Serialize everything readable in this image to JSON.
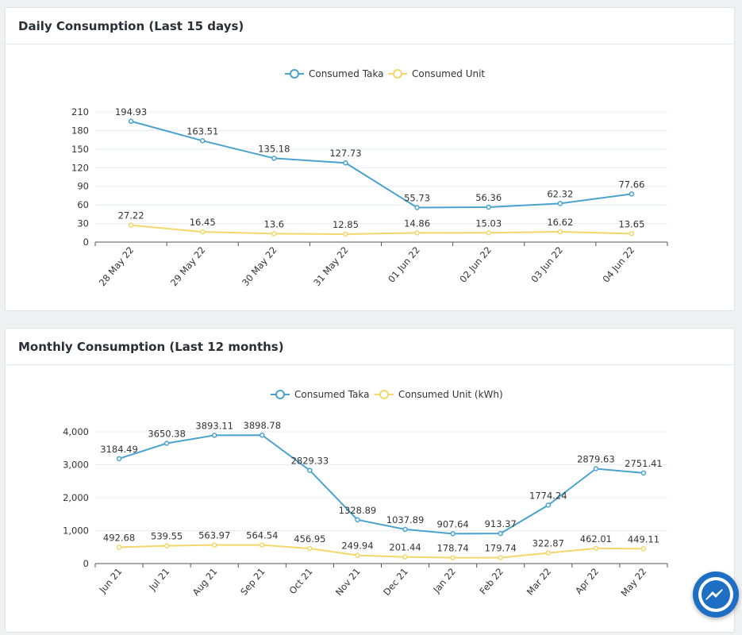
{
  "daily": {
    "title": "Daily Consumption (Last 15 days)"
  },
  "monthly": {
    "title": "Monthly Consumption (Last 12 months)"
  },
  "messenger": {
    "icon": "messenger-icon"
  },
  "colors": {
    "taka": "#4aa3cf",
    "unit": "#f3d76b",
    "grid": "#e8ecef",
    "axis": "#555555",
    "text": "#333333"
  },
  "chart_data": [
    {
      "type": "line",
      "title": "Daily Consumption (Last 15 days)",
      "categories": [
        "28 May 22",
        "29 May 22",
        "30 May 22",
        "31 May 22",
        "01 Jun 22",
        "02 Jun 22",
        "03 Jun 22",
        "04 Jun 22"
      ],
      "series": [
        {
          "name": "Consumed Taka",
          "values": [
            194.93,
            163.51,
            135.18,
            127.73,
            55.73,
            56.36,
            62.32,
            77.66
          ]
        },
        {
          "name": "Consumed Unit",
          "values": [
            27.22,
            16.45,
            13.6,
            12.85,
            14.86,
            15.03,
            16.62,
            13.65
          ]
        }
      ],
      "labels": [
        [
          "194.93",
          "163.51",
          "135.18",
          "127.73",
          "55.73",
          "56.36",
          "62.32",
          "77.66"
        ],
        [
          "27.22",
          "16.45",
          "13.6",
          "12.85",
          "14.86",
          "15.03",
          "16.62",
          "13.65"
        ]
      ],
      "yticks": [
        "0",
        "30",
        "60",
        "90",
        "120",
        "150",
        "180",
        "210"
      ],
      "ylim": [
        0,
        210
      ],
      "legend": "top-center",
      "grid": true
    },
    {
      "type": "line",
      "title": "Monthly Consumption (Last 12 months)",
      "categories": [
        "Jun 21",
        "Jul 21",
        "Aug 21",
        "Sep 21",
        "Oct 21",
        "Nov 21",
        "Dec 21",
        "Jan 22",
        "Feb 22",
        "Mar 22",
        "Apr 22",
        "May 22"
      ],
      "series": [
        {
          "name": "Consumed Taka",
          "values": [
            3184.49,
            3650.38,
            3893.11,
            3898.78,
            2829.33,
            1328.89,
            1037.89,
            907.64,
            913.37,
            1774.24,
            2879.63,
            2751.41
          ]
        },
        {
          "name": "Consumed Unit (kWh)",
          "values": [
            492.68,
            539.55,
            563.97,
            564.54,
            456.95,
            249.94,
            201.44,
            178.74,
            179.74,
            322.87,
            462.01,
            449.11
          ]
        }
      ],
      "labels": [
        [
          "3184.49",
          "3650.38",
          "3893.11",
          "3898.78",
          "2829.33",
          "1328.89",
          "1037.89",
          "907.64",
          "913.37",
          "1774.24",
          "2879.63",
          "2751.41"
        ],
        [
          "492.68",
          "539.55",
          "563.97",
          "564.54",
          "456.95",
          "249.94",
          "201.44",
          "178.74",
          "179.74",
          "322.87",
          "462.01",
          "449.11"
        ]
      ],
      "yticks": [
        "0",
        "1,000",
        "2,000",
        "3,000",
        "4,000"
      ],
      "ylim": [
        0,
        4000
      ],
      "legend": "top-center",
      "grid": true
    }
  ]
}
